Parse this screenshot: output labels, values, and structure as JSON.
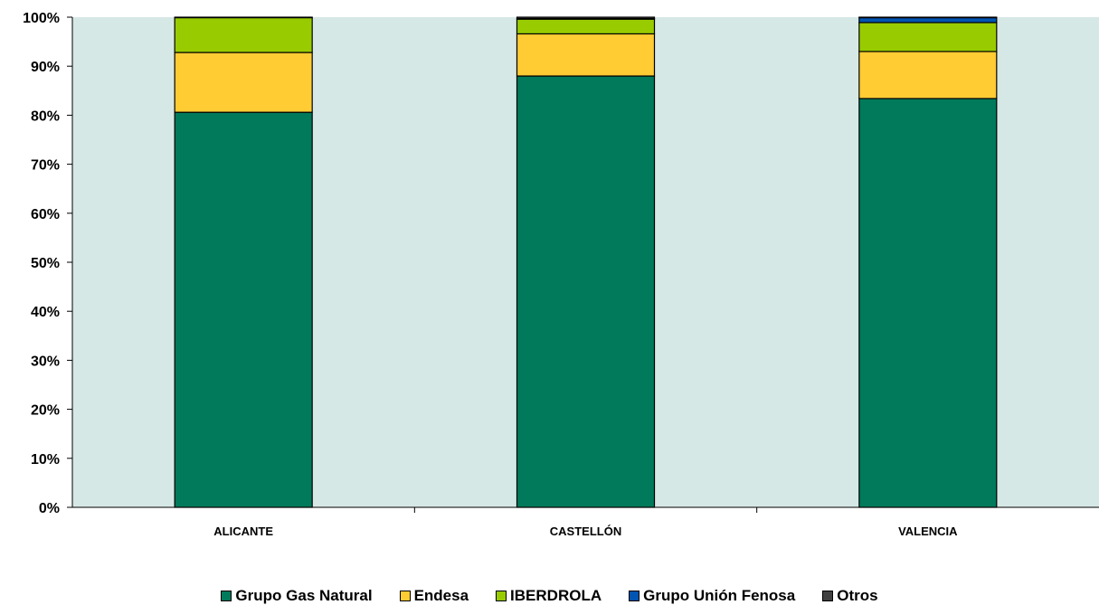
{
  "chart_data": {
    "type": "bar",
    "stacked": true,
    "percent": true,
    "categories": [
      "ALICANTE",
      "CASTELLÓN",
      "VALENCIA"
    ],
    "series": [
      {
        "name": "Grupo Gas Natural",
        "color": "#007A5A",
        "values": [
          80.6,
          88.0,
          83.4
        ]
      },
      {
        "name": "Endesa",
        "color": "#FFCC33",
        "values": [
          12.2,
          8.6,
          9.6
        ]
      },
      {
        "name": "IBERDROLA",
        "color": "#99CC00",
        "values": [
          7.1,
          3.0,
          5.9
        ]
      },
      {
        "name": "Grupo Unión Fenosa",
        "color": "#0055B3",
        "values": [
          0.1,
          0.1,
          1.0
        ]
      },
      {
        "name": "Otros",
        "color": "#404040",
        "values": [
          0.0,
          0.3,
          0.1
        ]
      }
    ],
    "yticks": [
      "0%",
      "10%",
      "20%",
      "30%",
      "40%",
      "50%",
      "60%",
      "70%",
      "80%",
      "90%",
      "100%"
    ],
    "ylim": [
      0,
      100
    ],
    "plot_background": "#D6E8E6",
    "legend_position": "bottom",
    "grid": false
  }
}
